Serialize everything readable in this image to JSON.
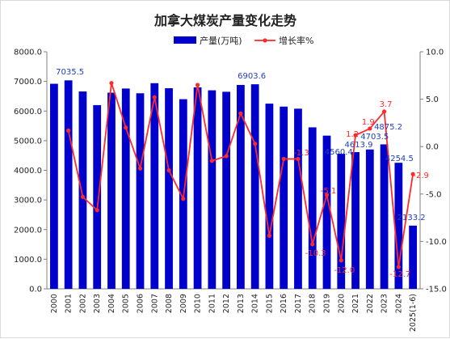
{
  "chart_data": {
    "type": "bar+line",
    "title": "加拿大煤炭产量变化走势",
    "categories": [
      "2000",
      "2001",
      "2002",
      "2003",
      "2004",
      "2005",
      "2006",
      "2007",
      "2008",
      "2009",
      "2010",
      "2011",
      "2012",
      "2013",
      "2014",
      "2015",
      "2016",
      "2017",
      "2018",
      "2019",
      "2020",
      "2021",
      "2022",
      "2023",
      "2024",
      "2025(1-6)"
    ],
    "series": [
      {
        "name": "产量(万吨)",
        "type": "bar",
        "axis": "left",
        "color": "#0000cc",
        "values": [
          6920,
          7035.5,
          6660,
          6200,
          6620,
          6760,
          6600,
          6940,
          6770,
          6400,
          6800,
          6700,
          6650,
          6880,
          6903.6,
          6250,
          6150,
          6080,
          5450,
          5170,
          4560.4,
          4613.9,
          4703.5,
          4875.2,
          4254.5,
          2133.2
        ]
      },
      {
        "name": "增长率%",
        "type": "line",
        "axis": "right",
        "color": "#ff2a2a",
        "values": [
          null,
          1.7,
          -5.3,
          -6.7,
          6.7,
          2.0,
          -2.3,
          5.2,
          -2.5,
          -5.5,
          6.5,
          -1.5,
          -1.0,
          3.5,
          0.3,
          -9.4,
          -1.3,
          -1.3,
          -10.3,
          -5.1,
          -12.0,
          1.2,
          1.9,
          3.7,
          -12.7,
          -2.9
        ]
      }
    ],
    "bar_labels": [
      {
        "index": 1,
        "text": "7035.5"
      },
      {
        "index": 14,
        "text": "6903.6"
      },
      {
        "index": 20,
        "text": "4560.4"
      },
      {
        "index": 21,
        "text": "4613.9"
      },
      {
        "index": 22,
        "text": "4703.5"
      },
      {
        "index": 23,
        "text": "4875.2"
      },
      {
        "index": 24,
        "text": "4254.5"
      },
      {
        "index": 25,
        "text": "2133.2"
      }
    ],
    "rate_labels": [
      {
        "index": 17,
        "text": "-1.3"
      },
      {
        "index": 18,
        "text": "-10.3"
      },
      {
        "index": 19,
        "text": "-5.1"
      },
      {
        "index": 20,
        "text": "-12.0"
      },
      {
        "index": 21,
        "text": "1.2"
      },
      {
        "index": 22,
        "text": "1.9"
      },
      {
        "index": 23,
        "text": "3.7"
      },
      {
        "index": 24,
        "text": "-12.7"
      },
      {
        "index": 25,
        "text": "-2.9"
      }
    ],
    "y_left": {
      "min": 0,
      "max": 8000,
      "step": 1000,
      "tick_labels": [
        "0.0",
        "1000.0",
        "2000.0",
        "3000.0",
        "4000.0",
        "5000.0",
        "6000.0",
        "7000.0",
        "8000.0"
      ]
    },
    "y_right": {
      "min": -15,
      "max": 10,
      "step": 5,
      "tick_labels": [
        "-15.0",
        "-10.0",
        "-5.0",
        "0.0",
        "5.0",
        "10.0"
      ]
    },
    "grid": false,
    "legend_position": "top-center"
  }
}
